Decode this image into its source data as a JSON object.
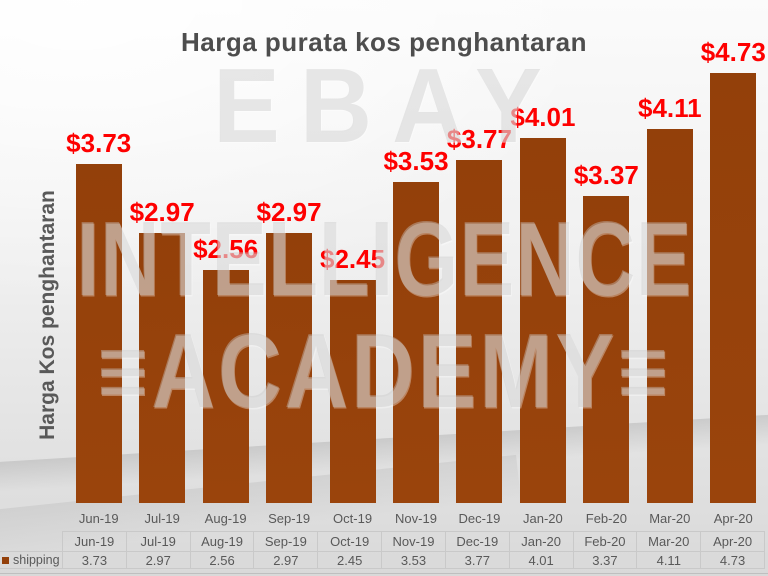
{
  "title": "Harga purata kos penghantaran",
  "y_axis_label": "Harga Kos penghantaran",
  "watermark": {
    "brand": "EBAY",
    "line2": "INTELLIGENCE",
    "line3": "≡ACADEMY≡"
  },
  "legend": {
    "label": "shipping"
  },
  "colors": {
    "bar": "#93400A",
    "bar_gradient_end": "#9A440C",
    "value_label": "#FE0000",
    "title_text": "#4D4D4D",
    "axis_text": "#595959",
    "table_border": "#C9C9C9"
  },
  "chart_data": {
    "type": "bar",
    "title": "Harga purata kos penghantaran",
    "xlabel": "",
    "ylabel": "Harga Kos penghantaran",
    "categories": [
      "Jun-19",
      "Jul-19",
      "Aug-19",
      "Sep-19",
      "Oct-19",
      "Nov-19",
      "Dec-19",
      "Jan-20",
      "Feb-20",
      "Mar-20",
      "Apr-20"
    ],
    "series": [
      {
        "name": "shipping",
        "values": [
          3.73,
          2.97,
          2.56,
          2.97,
          2.45,
          3.53,
          3.77,
          4.01,
          3.37,
          4.11,
          4.73
        ]
      }
    ],
    "data_labels": [
      "$3.73",
      "$2.97",
      "$2.56",
      "$2.97",
      "$2.45",
      "$3.53",
      "$3.77",
      "$4.01",
      "$3.37",
      "$4.11",
      "$4.73"
    ],
    "value_axis": {
      "visible": false,
      "min": 0
    },
    "grid": false,
    "legend_position": "bottom-left",
    "data_table": {
      "shown": true,
      "header": [
        "Jun-19",
        "Jul-19",
        "Aug-19",
        "Sep-19",
        "Oct-19",
        "Nov-19",
        "Dec-19",
        "Jan-20",
        "Feb-20",
        "Mar-20",
        "Apr-20"
      ],
      "row_label": "shipping",
      "values": [
        "3.73",
        "2.97",
        "2.56",
        "2.97",
        "2.45",
        "3.53",
        "3.77",
        "4.01",
        "3.37",
        "4.11",
        "4.73"
      ]
    }
  }
}
